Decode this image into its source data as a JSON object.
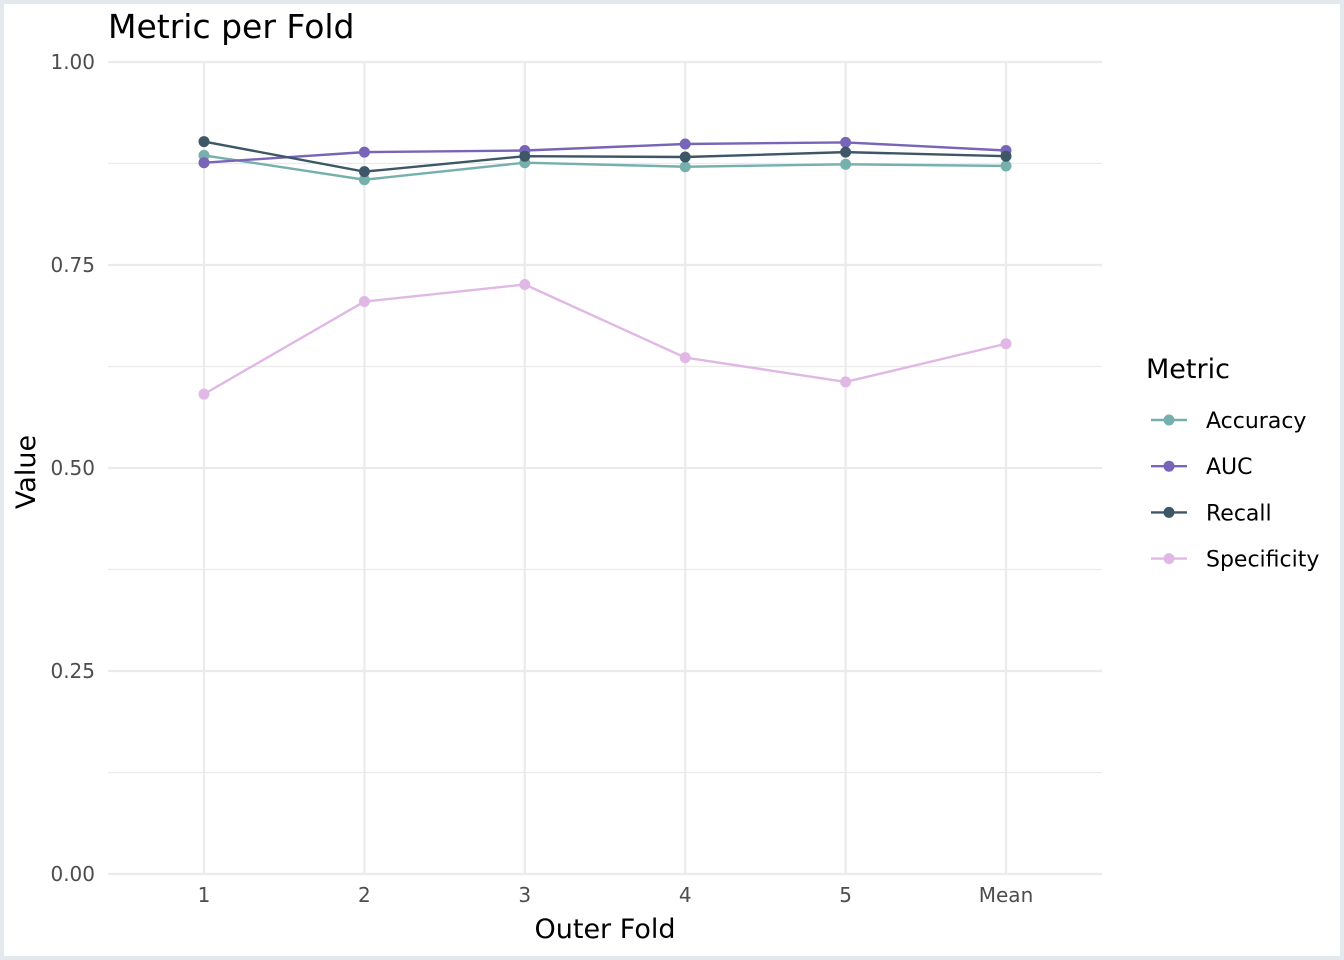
{
  "chart_data": {
    "type": "line",
    "title": "Metric per Fold",
    "xlabel": "Outer Fold",
    "ylabel": "Value",
    "categories": [
      "1",
      "2",
      "3",
      "4",
      "5",
      "Mean"
    ],
    "ylim": [
      0,
      1
    ],
    "yticks": [
      "0.00",
      "0.25",
      "0.50",
      "0.75",
      "1.00"
    ],
    "grid": true,
    "legend": {
      "title": "Metric",
      "placement": "right"
    },
    "series": [
      {
        "name": "Accuracy",
        "color": "#76b0ad",
        "values": [
          0.885,
          0.855,
          0.876,
          0.871,
          0.874,
          0.872
        ]
      },
      {
        "name": "AUC",
        "color": "#7865b8",
        "values": [
          0.876,
          0.889,
          0.891,
          0.899,
          0.901,
          0.891
        ]
      },
      {
        "name": "Recall",
        "color": "#3d5766",
        "values": [
          0.902,
          0.865,
          0.884,
          0.883,
          0.889,
          0.884
        ]
      },
      {
        "name": "Specificity",
        "color": "#e1b7e6",
        "values": [
          0.591,
          0.705,
          0.726,
          0.636,
          0.606,
          0.653
        ]
      }
    ]
  }
}
